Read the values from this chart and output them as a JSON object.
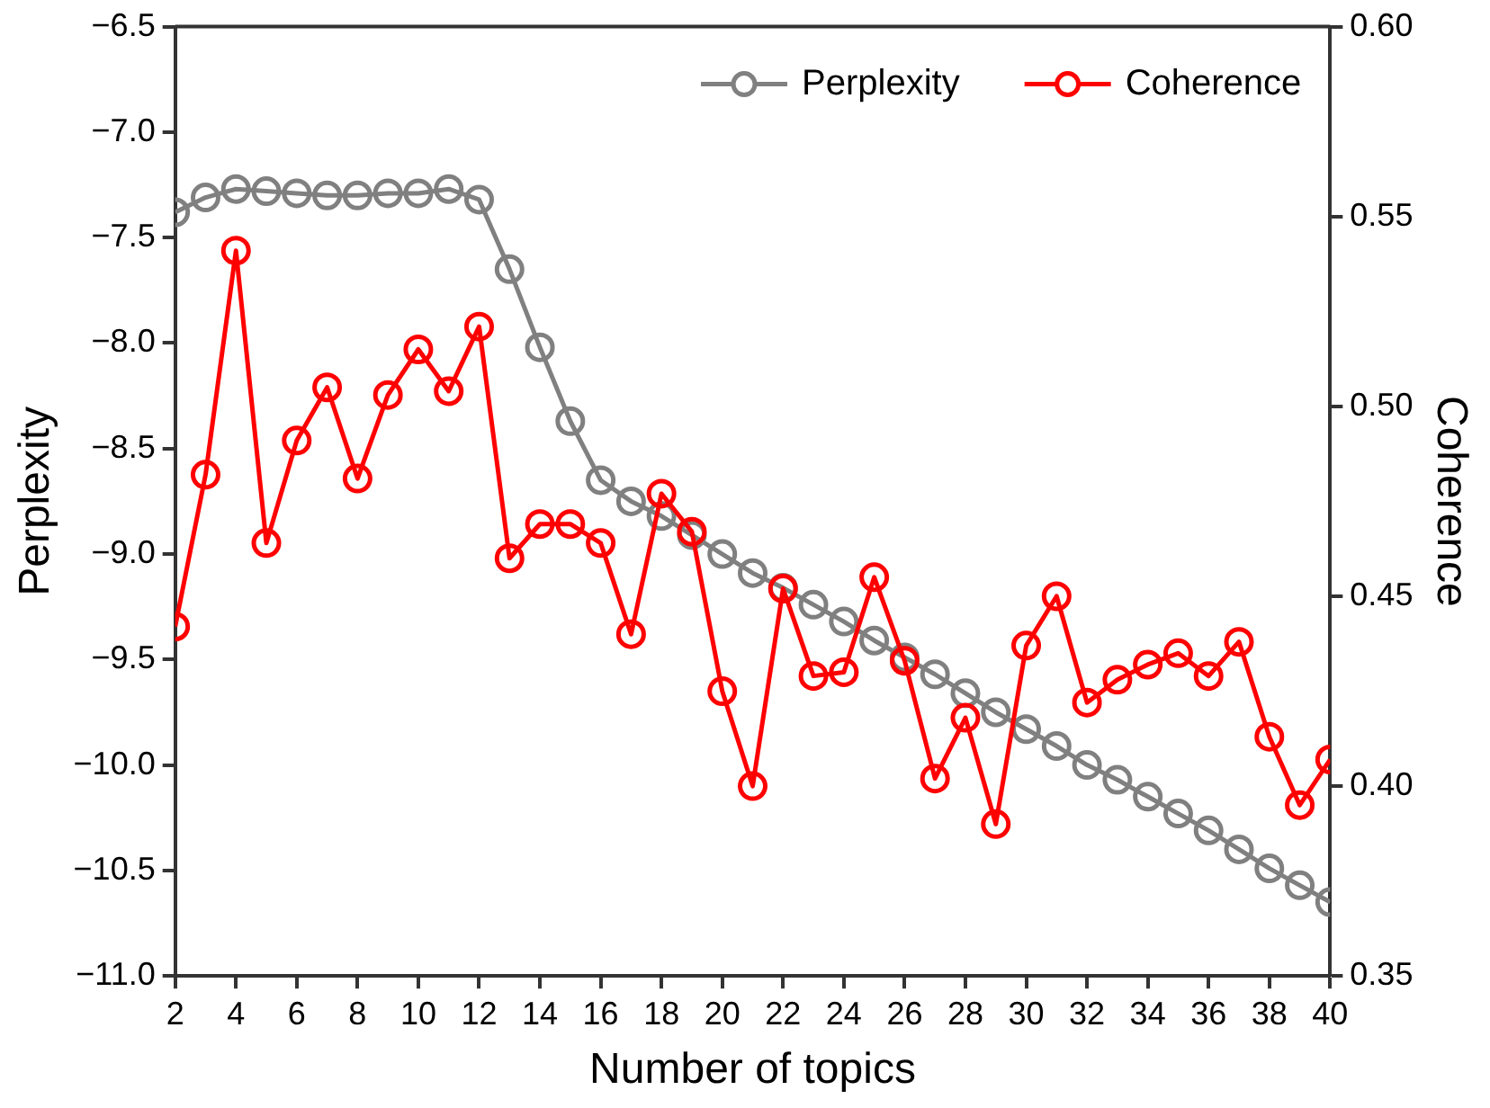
{
  "chart_data": {
    "type": "line",
    "xlabel": "Number of topics",
    "ylabel": "Perplexity",
    "y2label": "Coherence",
    "x": [
      2,
      3,
      4,
      5,
      6,
      7,
      8,
      9,
      10,
      11,
      12,
      13,
      14,
      15,
      16,
      17,
      18,
      19,
      20,
      21,
      22,
      23,
      24,
      25,
      26,
      27,
      28,
      29,
      30,
      31,
      32,
      33,
      34,
      35,
      36,
      37,
      38,
      39,
      40
    ],
    "series": [
      {
        "name": "Perplexity",
        "color": "#808080",
        "values": [
          -7.38,
          -7.31,
          -7.27,
          -7.28,
          -7.29,
          -7.3,
          -7.3,
          -7.29,
          -7.29,
          -7.27,
          -7.32,
          -7.65,
          -8.02,
          -8.37,
          -8.65,
          -8.75,
          -8.82,
          -8.91,
          -9.0,
          -9.09,
          -9.16,
          -9.24,
          -9.32,
          -9.41,
          -9.49,
          -9.57,
          -9.66,
          -9.75,
          -9.83,
          -9.91,
          -10.0,
          -10.07,
          -10.15,
          -10.23,
          -10.31,
          -10.4,
          -10.49,
          -10.57,
          -10.65
        ]
      },
      {
        "name": "Coherence",
        "color": "#ff0000",
        "axis": "y2",
        "values": [
          0.442,
          0.482,
          0.541,
          0.464,
          0.491,
          0.505,
          0.481,
          0.503,
          0.515,
          0.504,
          0.521,
          0.46,
          0.469,
          0.469,
          0.464,
          0.44,
          0.477,
          0.467,
          0.425,
          0.4,
          0.452,
          0.429,
          0.43,
          0.455,
          0.433,
          0.402,
          0.418,
          0.39,
          0.437,
          0.45,
          0.422,
          0.428,
          0.432,
          0.435,
          0.429,
          0.438,
          0.413,
          0.395,
          0.407
        ]
      }
    ],
    "xlim": [
      2,
      40
    ],
    "xticks": [
      2,
      4,
      6,
      8,
      10,
      12,
      14,
      16,
      18,
      20,
      22,
      24,
      26,
      28,
      30,
      32,
      34,
      36,
      38,
      40
    ],
    "ylim": [
      -11.0,
      -6.5
    ],
    "yticks": [
      {
        "value": -11.0,
        "label": "−11.0"
      },
      {
        "value": -10.5,
        "label": "−10.5"
      },
      {
        "value": -10.0,
        "label": "−10.0"
      },
      {
        "value": -9.5,
        "label": "−9.5"
      },
      {
        "value": -9.0,
        "label": "−9.0"
      },
      {
        "value": -8.5,
        "label": "−8.5"
      },
      {
        "value": -8.0,
        "label": "−8.0"
      },
      {
        "value": -7.5,
        "label": "−7.5"
      },
      {
        "value": -7.0,
        "label": "−7.0"
      },
      {
        "value": -6.5,
        "label": "−6.5"
      }
    ],
    "y2lim": [
      0.35,
      0.6
    ],
    "y2ticks": [
      {
        "value": 0.35,
        "label": "0.35"
      },
      {
        "value": 0.4,
        "label": "0.40"
      },
      {
        "value": 0.45,
        "label": "0.45"
      },
      {
        "value": 0.5,
        "label": "0.50"
      },
      {
        "value": 0.55,
        "label": "0.55"
      },
      {
        "value": 0.6,
        "label": "0.60"
      }
    ],
    "grid": false,
    "legend": "top right",
    "marker": "circle",
    "line_style": "solid"
  }
}
